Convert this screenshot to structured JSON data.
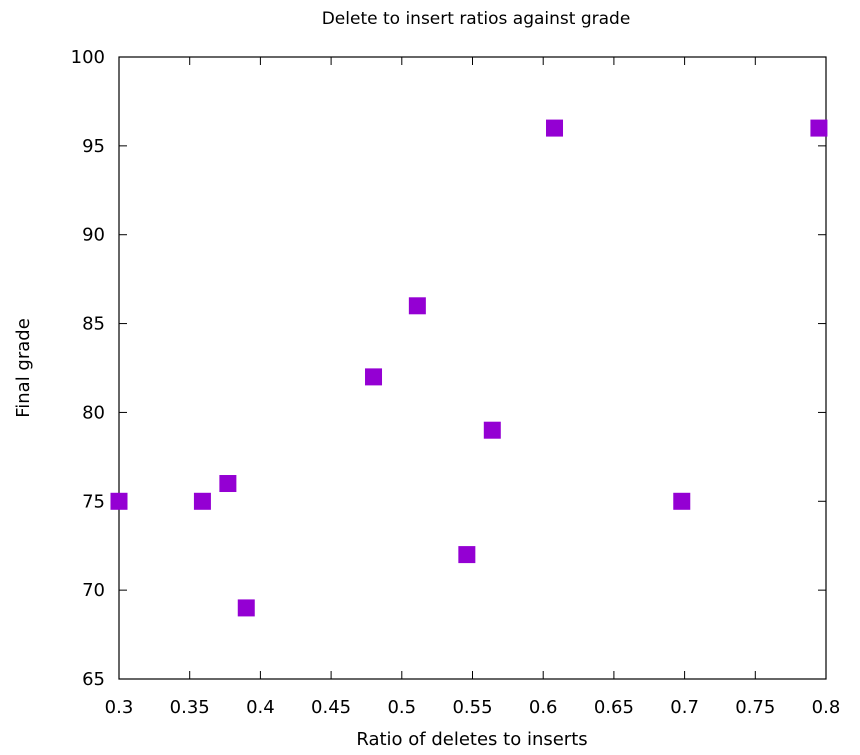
{
  "chart_data": {
    "type": "scatter",
    "title": "Delete to insert ratios against grade",
    "xlabel": "Ratio of deletes to inserts",
    "ylabel": "Final grade",
    "xlim": [
      0.3,
      0.8
    ],
    "ylim": [
      65,
      100
    ],
    "xticks": [
      "0.3",
      "0.35",
      "0.4",
      "0.45",
      "0.5",
      "0.55",
      "0.6",
      "0.65",
      "0.7",
      "0.75",
      "0.8"
    ],
    "yticks": [
      "65",
      "70",
      "75",
      "80",
      "85",
      "90",
      "95",
      "100"
    ],
    "grid": false,
    "legend": "none",
    "marker": "square",
    "marker_color": "#9400d3",
    "series": [
      {
        "x": [
          0.3,
          0.359,
          0.377,
          0.39,
          0.48,
          0.511,
          0.546,
          0.564,
          0.608,
          0.698,
          0.795
        ],
        "y": [
          75,
          75,
          76,
          69,
          82,
          86,
          72,
          79,
          96,
          75,
          96
        ]
      }
    ]
  }
}
